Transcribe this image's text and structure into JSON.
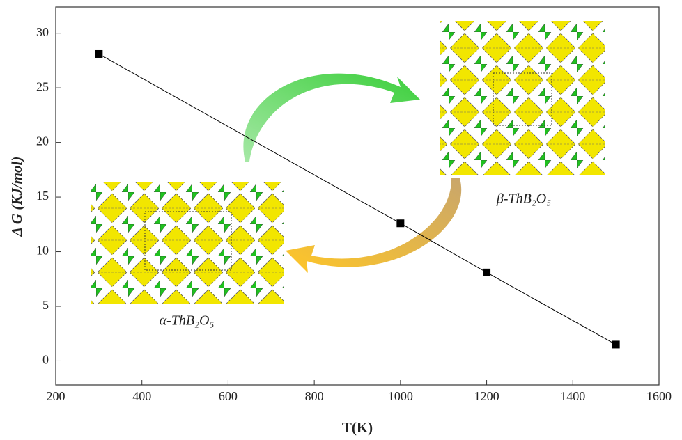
{
  "chart_data": {
    "type": "line",
    "x_label": "T(K)",
    "y_label": "Δ G (KJ/mol)",
    "annotations": [
      "β-ThB₂O₅",
      "α-ThB₂O₅"
    ],
    "x": [
      300,
      1000,
      1200,
      1500
    ],
    "series": [
      {
        "color": "#000000",
        "values": [
          28.1,
          12.6,
          8.1,
          1.5
        ]
      }
    ],
    "marker": "square",
    "xlim": [
      200,
      1600
    ],
    "xticks": [
      200,
      400,
      600,
      800,
      1000,
      1200,
      1400,
      1600
    ],
    "ylim": [
      -2.2,
      32.4
    ],
    "yticks": [
      0,
      5,
      10,
      15,
      20,
      25,
      30
    ]
  }
}
